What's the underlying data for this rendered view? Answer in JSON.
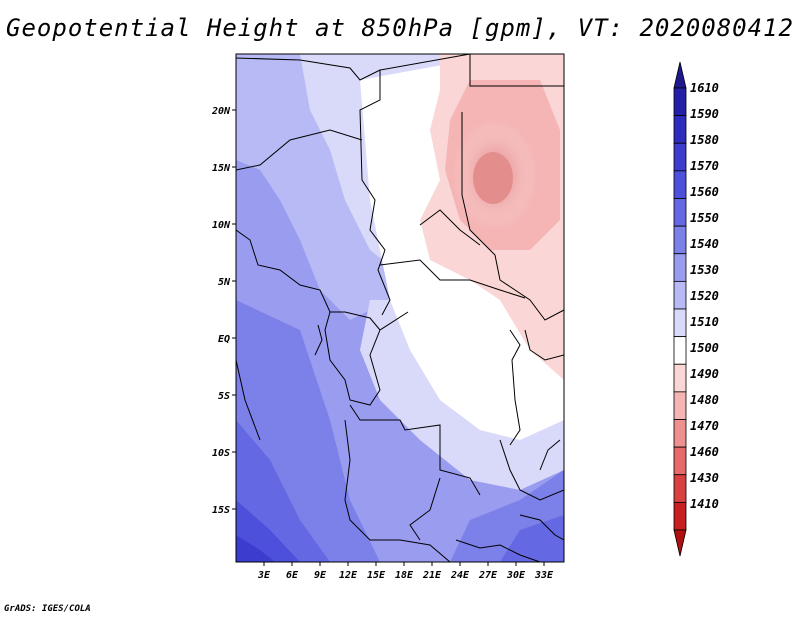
{
  "title": "Geopotential Height at 850hPa [gpm], VT: 2020080412",
  "credit": "GrADS: IGES/COLA",
  "lat_labels": [
    "20N",
    "15N",
    "10N",
    "5N",
    "EQ",
    "5S",
    "10S",
    "15S"
  ],
  "lon_labels": [
    "3E",
    "6E",
    "9E",
    "12E",
    "15E",
    "18E",
    "21E",
    "24E",
    "27E",
    "30E",
    "33E"
  ],
  "colorbar": {
    "labels": [
      "1610",
      "1590",
      "1580",
      "1570",
      "1560",
      "1550",
      "1540",
      "1530",
      "1520",
      "1510",
      "1500",
      "1490",
      "1480",
      "1470",
      "1460",
      "1430",
      "1410"
    ],
    "colors": [
      "#1f178f",
      "#241fa8",
      "#2e2cbf",
      "#3c3dcf",
      "#4d50da",
      "#6468e2",
      "#7c80e9",
      "#9a9cef",
      "#b8baf5",
      "#d9daf9",
      "#ffffff",
      "#fad6d6",
      "#f5b5b5",
      "#ee9090",
      "#e66a6a",
      "#d94040",
      "#c82020",
      "#b01010"
    ]
  }
}
